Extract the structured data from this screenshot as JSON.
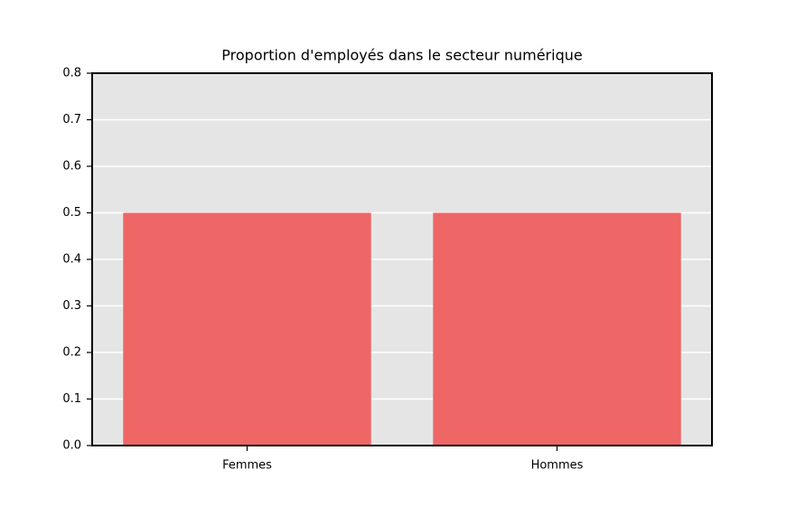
{
  "chart_data": {
    "type": "bar",
    "title": "Proportion d'employés dans le secteur numérique",
    "categories": [
      "Femmes",
      "Hommes"
    ],
    "values": [
      0.5,
      0.5
    ],
    "color": "#ee6666",
    "ylim": [
      0,
      0.8
    ],
    "yticks": [
      {
        "value": 0,
        "label": "0.0"
      },
      0.1,
      0.2,
      0.3,
      0.4,
      0.5,
      0.6,
      0.7,
      0.8
    ],
    "grid": true
  }
}
